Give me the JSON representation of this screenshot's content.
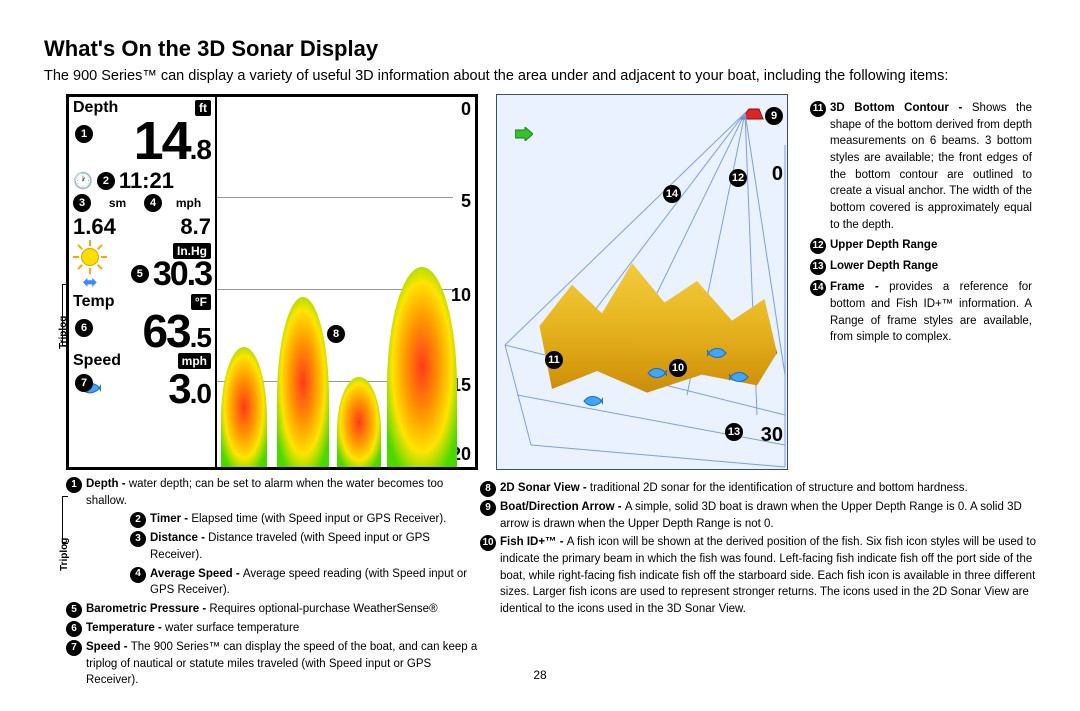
{
  "title": "What's On the 3D Sonar Display",
  "intro": "The 900 Series™ can display a variety of useful 3D information about the area under and adjacent to your boat, including the following items:",
  "pagenum": "28",
  "readouts": {
    "depth": {
      "label": "Depth",
      "unit": "ft",
      "whole": "14",
      "dec": ".8"
    },
    "timer": "11:21",
    "distance": {
      "label": "sm",
      "value": "1.64"
    },
    "avgspeed": {
      "label": "mph",
      "value": "8.7"
    },
    "baro": {
      "label": "In.Hg",
      "value": "30.3"
    },
    "temp": {
      "label": "Temp",
      "unit": "°F",
      "whole": "63",
      "dec": ".5"
    },
    "speed": {
      "label": "Speed",
      "unit": "mph",
      "whole": "3",
      "dec": ".0"
    }
  },
  "triplog": "Triplog",
  "scale2d": {
    "top": "0",
    "a": "5",
    "b": "10",
    "c": "15",
    "bot": "20"
  },
  "panel3d": {
    "upper": "0",
    "lower": "30",
    "boat_color": "#e02525",
    "arrow_color": "#36c22a",
    "fish_color": "#3fa6ff",
    "grid_color": "#7aa0e0",
    "bg_color": "#eaf1ff",
    "contour_color": "#e8b823"
  },
  "callouts": {
    "1": "1",
    "2": "2",
    "3": "3",
    "4": "4",
    "5": "5",
    "6": "6",
    "7": "7",
    "8": "8",
    "9": "9",
    "10": "10",
    "11": "11",
    "12": "12",
    "13": "13",
    "14": "14"
  },
  "legend_left": [
    {
      "n": "1",
      "term": "Depth - ",
      "desc": "water depth; can be set to alarm when the water becomes too shallow."
    },
    {
      "n": "2",
      "term": "Timer - ",
      "desc": "Elapsed time (with Speed input or GPS Receiver)."
    },
    {
      "n": "3",
      "term": "Distance - ",
      "desc": "Distance traveled (with Speed input or GPS Receiver)."
    },
    {
      "n": "4",
      "term": "Average Speed - ",
      "desc": "Average speed reading (with Speed input or GPS Receiver)."
    },
    {
      "n": "5",
      "term": "Barometric Pressure - ",
      "desc": "Requires optional-purchase WeatherSense®"
    },
    {
      "n": "6",
      "term": "Temperature - ",
      "desc": "water surface temperature"
    },
    {
      "n": "7",
      "term": "Speed - ",
      "desc": "The 900 Series™ can display the speed of the boat, and can keep a triplog of nautical or statute miles traveled (with Speed input or GPS Receiver)."
    }
  ],
  "legend_mid": [
    {
      "n": "8",
      "term": "2D Sonar View - ",
      "desc": "traditional 2D sonar for the identification of structure and bottom hardness."
    },
    {
      "n": "9",
      "term": "Boat/Direction Arrow - ",
      "desc": "A simple, solid 3D boat is drawn when the Upper Depth Range is 0.  A solid 3D arrow is drawn when the Upper Depth Range is not 0."
    },
    {
      "n": "10",
      "term": "Fish ID+™ - ",
      "desc": "A fish icon will be shown at the derived position of the fish. Six fish icon styles will be used to indicate the primary beam in which the fish was found. Left-facing fish indicate fish off the port side of the boat, while right-facing fish indicate fish off the starboard side. Each fish icon is available in three different sizes. Larger fish icons are used to represent stronger returns. The icons used in the 2D Sonar View are identical to the icons used in the 3D Sonar View."
    }
  ],
  "legend_right": [
    {
      "n": "11",
      "term": "3D Bottom Contour - ",
      "desc": "Shows the shape of the bottom derived from depth measurements on 6 beams. 3 bottom styles are available; the front edges of the bottom contour are outlined to create a visual anchor. The width of the bottom covered is approximately equal to the depth."
    },
    {
      "n": "12",
      "term": "Upper Depth Range",
      "desc": ""
    },
    {
      "n": "13",
      "term": "Lower Depth Range",
      "desc": ""
    },
    {
      "n": "14",
      "term": "Frame - ",
      "desc": "provides a reference for bottom and Fish ID+™ information. A Range of frame styles are available, from simple to complex."
    }
  ]
}
